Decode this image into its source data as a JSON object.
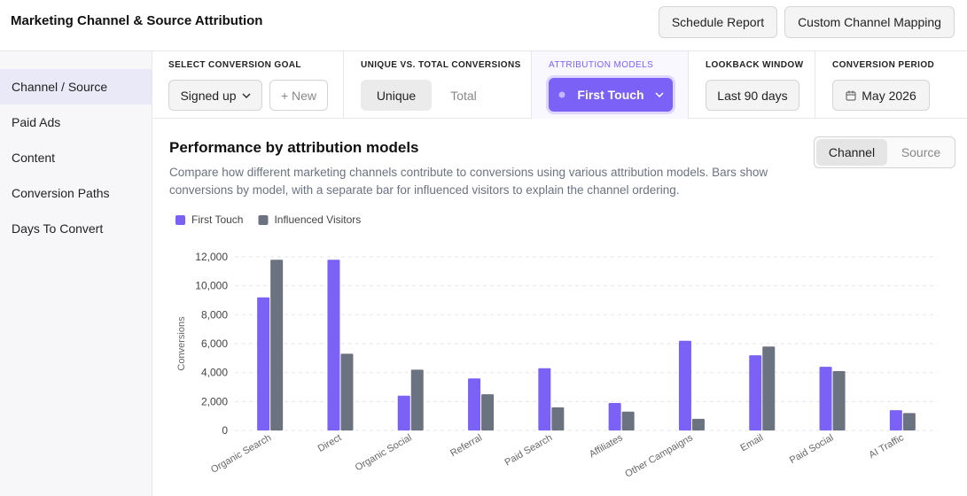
{
  "header": {
    "title": "Marketing Channel & Source Attribution",
    "buttons": [
      "Schedule Report",
      "Custom Channel Mapping"
    ]
  },
  "sidebar": {
    "items": [
      "Channel / Source",
      "Paid Ads",
      "Content",
      "Conversion Paths",
      "Days To Convert"
    ]
  },
  "filters": [
    {
      "label": "SELECT CONVERSION GOAL",
      "controls": [
        "Signed up",
        "+ New"
      ]
    },
    {
      "label": "UNIQUE VS. TOTAL CONVERSIONS",
      "controls": [
        "Unique",
        "Total"
      ]
    },
    {
      "label": "ATTRIBUTION MODELS",
      "controls": [
        "First Touch"
      ]
    },
    {
      "label": "LOOKBACK WINDOW",
      "controls": [
        "Last 90 days"
      ]
    },
    {
      "label": "CONVERSION PERIOD",
      "controls": [
        "May 2026"
      ]
    }
  ],
  "panel": {
    "title": "Performance by attribution models",
    "description": "Compare how different marketing channels contribute to conversions using various attribution models. Bars show conversions by model, with a separate bar for influenced visitors to explain the channel ordering.",
    "toggle": [
      "Channel",
      "Source"
    ]
  },
  "chart_data": {
    "type": "bar",
    "y_label": "Conversions",
    "categories": [
      "Organic Search",
      "Direct",
      "Organic Social",
      "Referral",
      "Paid Search",
      "Affiliates",
      "Other Campaigns",
      "Email",
      "Paid Social",
      "AI Traffic"
    ],
    "series": [
      {
        "name": "First Touch",
        "color": "#7b61f5",
        "values": [
          9200,
          11800,
          2400,
          3600,
          4300,
          1900,
          6200,
          5200,
          4400,
          1400
        ]
      },
      {
        "name": "Influenced Visitors",
        "color": "#6b7280",
        "values": [
          11800,
          5300,
          4200,
          2500,
          1600,
          1300,
          800,
          5800,
          4100,
          1200
        ]
      }
    ],
    "ylim": [
      0,
      12000
    ],
    "yticks": [
      0,
      {
        "value": 2000,
        "label": "2,000"
      },
      {
        "value": 4000,
        "label": "4,000"
      },
      {
        "value": 6000,
        "label": "6,000"
      },
      {
        "value": 8000,
        "label": "8,000"
      },
      {
        "value": 10000,
        "label": "10,000"
      },
      {
        "value": 12000,
        "label": "12,000"
      }
    ],
    "grid": true,
    "legend": "top-left"
  }
}
